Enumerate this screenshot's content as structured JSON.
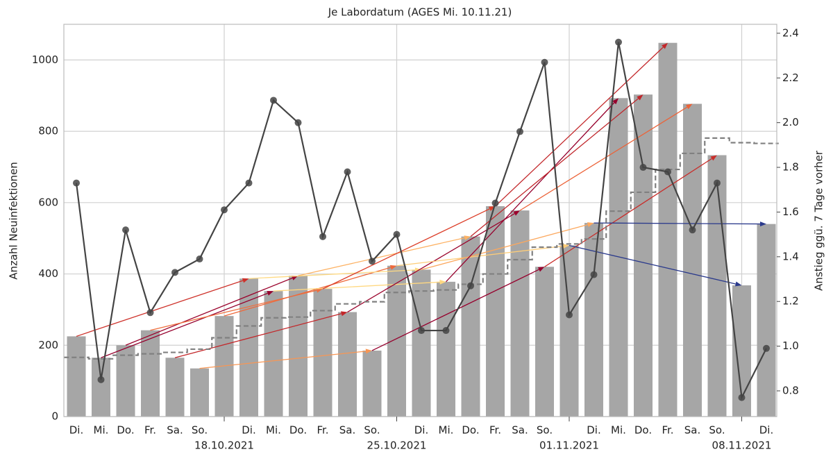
{
  "chart_data": {
    "type": "bar",
    "title": "Je Labordatum (AGES Mi. 10.11.21)",
    "ylabel": "Anzahl Neuinfektionen",
    "y2label": "Anstieg ggü. 7 Tage vorher",
    "categories": [
      "Di.",
      "Mi.",
      "Do.",
      "Fr.",
      "Sa.",
      "So.",
      "18.10.2021",
      "Di.",
      "Mi.",
      "Do.",
      "Fr.",
      "Sa.",
      "So.",
      "25.10.2021",
      "Di.",
      "Mi.",
      "Do.",
      "Fr.",
      "Sa.",
      "So.",
      "01.11.2021",
      "Di.",
      "Mi.",
      "Do.",
      "Fr.",
      "Sa.",
      "So.",
      "08.11.2021",
      "Di."
    ],
    "series": [
      {
        "color": "#a6a6a6",
        "values": [
          225,
          165,
          200,
          242,
          165,
          135,
          282,
          387,
          352,
          395,
          358,
          293,
          185,
          423,
          412,
          378,
          505,
          590,
          578,
          420,
          480,
          543,
          893,
          903,
          1048,
          877,
          733,
          368,
          540
        ]
      },
      {
        "color": "#808080",
        "style": "step-dashed",
        "values": [
          166,
          162,
          172,
          176,
          180,
          189,
          221,
          254,
          277,
          279,
          297,
          316,
          322,
          348,
          352,
          355,
          371,
          400,
          440,
          475,
          484,
          498,
          576,
          629,
          693,
          738,
          781,
          768,
          766
        ]
      },
      {
        "color": "#444444",
        "axis": "y2",
        "style": "line",
        "values": [
          1.73,
          0.85,
          1.52,
          1.15,
          1.33,
          1.39,
          1.61,
          1.73,
          2.1,
          2.0,
          1.49,
          1.78,
          1.38,
          1.5,
          1.07,
          1.07,
          1.27,
          1.64,
          1.96,
          2.27,
          1.14,
          1.32,
          2.36,
          1.8,
          1.78,
          1.52,
          1.73,
          0.77,
          0.99
        ]
      }
    ],
    "ylim": [
      0,
      1100
    ],
    "yticks": [
      0,
      200,
      400,
      600,
      800,
      1000
    ],
    "y2lim": [
      0.685,
      2.44
    ],
    "y2ticks": [
      0.8,
      {
        "value": 1.0,
        "label": "1.0"
      },
      1.2,
      1.4,
      1.6,
      1.8,
      {
        "value": 2.0,
        "label": "2.0"
      },
      2.2,
      2.4
    ],
    "grid": true
  }
}
